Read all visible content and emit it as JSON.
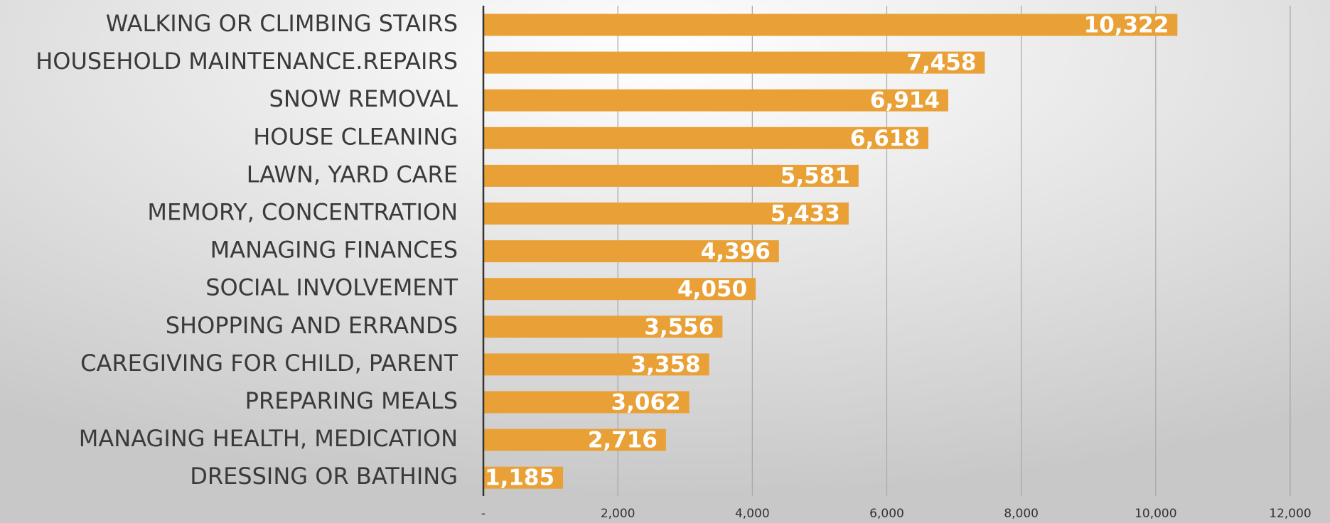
{
  "chart_data": {
    "type": "barh",
    "categories": [
      "WALKING OR CLIMBING STAIRS",
      "HOUSEHOLD MAINTENANCE.REPAIRS",
      "SNOW REMOVAL",
      "HOUSE CLEANING",
      "LAWN, YARD CARE",
      "MEMORY, CONCENTRATION",
      "MANAGING FINANCES",
      "SOCIAL INVOLVEMENT",
      "SHOPPING AND ERRANDS",
      "CAREGIVING FOR CHILD, PARENT",
      "PREPARING MEALS",
      "MANAGING HEALTH, MEDICATION",
      "DRESSING OR BATHING"
    ],
    "values": [
      10322,
      7458,
      6914,
      6618,
      5581,
      5433,
      4396,
      4050,
      3556,
      3358,
      3062,
      2716,
      1185
    ],
    "value_labels": [
      "10,322",
      "7,458",
      "6,914",
      "6,618",
      "5,581",
      "5,433",
      "4,396",
      "4,050",
      "3,556",
      "3,358",
      "3,062",
      "2,716",
      "1,185"
    ],
    "color": "#e9a137",
    "xlim": [
      0,
      12000
    ],
    "xticks": [
      {
        "value": 0,
        "label": "-"
      },
      {
        "value": 2000,
        "label": "2,000"
      },
      {
        "value": 4000,
        "label": "4,000"
      },
      {
        "value": 6000,
        "label": "6,000"
      },
      {
        "value": 8000,
        "label": "8,000"
      },
      {
        "value": 10000,
        "label": "10,000"
      },
      {
        "value": 12000,
        "label": "12,000"
      }
    ],
    "grid": true
  }
}
